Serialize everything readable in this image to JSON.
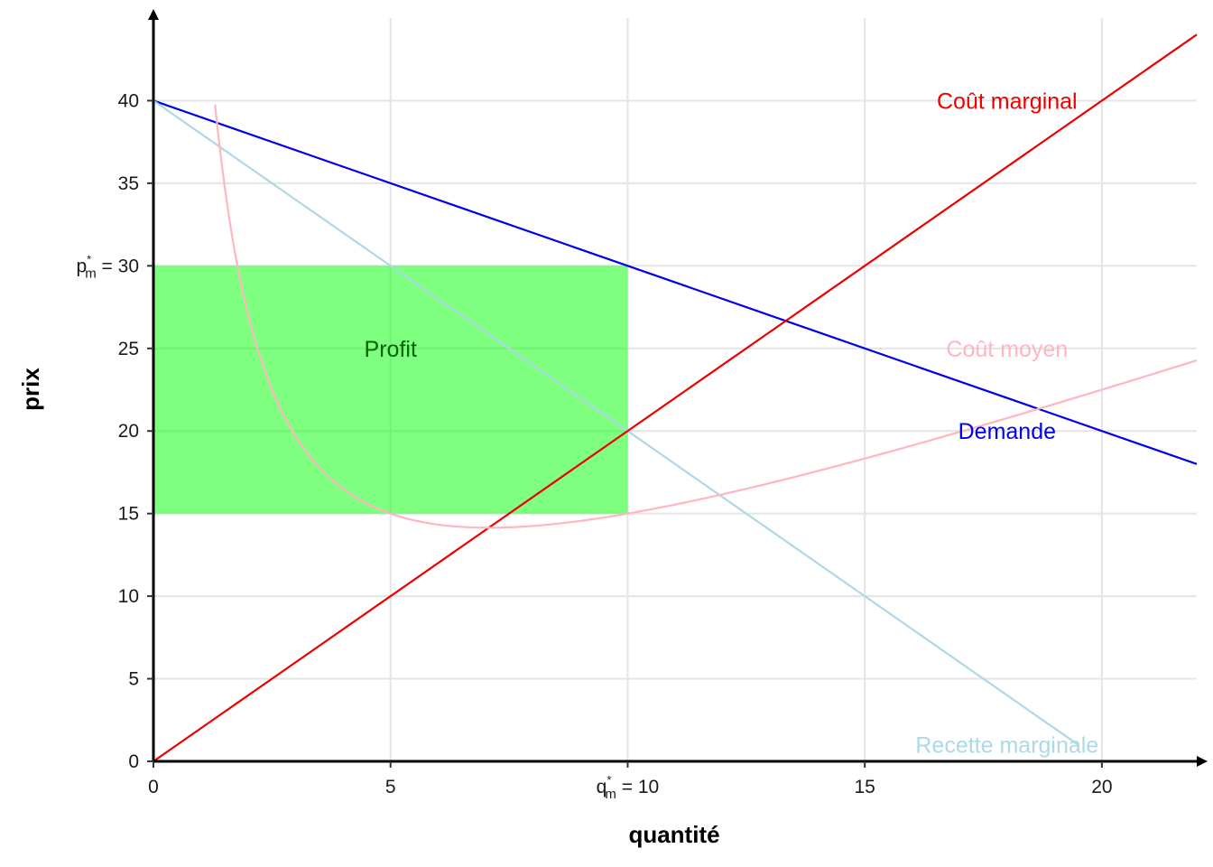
{
  "chart_data": {
    "type": "line",
    "xlabel": "quantité",
    "ylabel": "prix",
    "xlim": [
      0,
      22
    ],
    "ylim": [
      0,
      45
    ],
    "grid": true,
    "x_ticks": [
      {
        "value": 0,
        "label": "0"
      },
      {
        "value": 5,
        "label": "5"
      },
      {
        "value": 10,
        "label": "q*m = 10",
        "main": "q",
        "sup": "*",
        "sub": "m",
        "rest": " = 10"
      },
      {
        "value": 15,
        "label": "15"
      },
      {
        "value": 20,
        "label": "20"
      }
    ],
    "y_ticks": [
      {
        "value": 0,
        "label": "0"
      },
      {
        "value": 5,
        "label": "5"
      },
      {
        "value": 10,
        "label": "10"
      },
      {
        "value": 15,
        "label": "15"
      },
      {
        "value": 20,
        "label": "20"
      },
      {
        "value": 25,
        "label": "25"
      },
      {
        "value": 30,
        "label": "p*m = 30",
        "main": "p",
        "sup": "*",
        "sub": "m",
        "rest": " = 30"
      },
      {
        "value": 35,
        "label": "35"
      },
      {
        "value": 40,
        "label": "40"
      }
    ],
    "profit_region": {
      "label": "Profit",
      "x": [
        0,
        10
      ],
      "y": [
        15,
        30
      ],
      "label_pos": [
        5,
        25
      ],
      "color": "#00ff00",
      "label_color": "#006400"
    },
    "series": [
      {
        "name": "Demande",
        "kind": "linear",
        "points": [
          [
            0,
            40
          ],
          [
            22,
            18
          ]
        ],
        "color": "#0000ee",
        "label_pos": [
          18,
          20
        ]
      },
      {
        "name": "Recette marginale",
        "kind": "linear",
        "points": [
          [
            0,
            40
          ],
          [
            19.5,
            1
          ]
        ],
        "color": "#add8e6",
        "label_pos": [
          18,
          1
        ]
      },
      {
        "name": "Coût marginal",
        "kind": "linear",
        "points": [
          [
            0,
            0
          ],
          [
            22,
            44
          ]
        ],
        "color": "#ee0000",
        "label_pos": [
          18,
          40
        ]
      },
      {
        "name": "Coût moyen",
        "kind": "function",
        "formula": "x + 50/x",
        "x_range": [
          1.3,
          22
        ],
        "color": "#ffb6c1",
        "label_pos": [
          18,
          25
        ]
      }
    ]
  }
}
